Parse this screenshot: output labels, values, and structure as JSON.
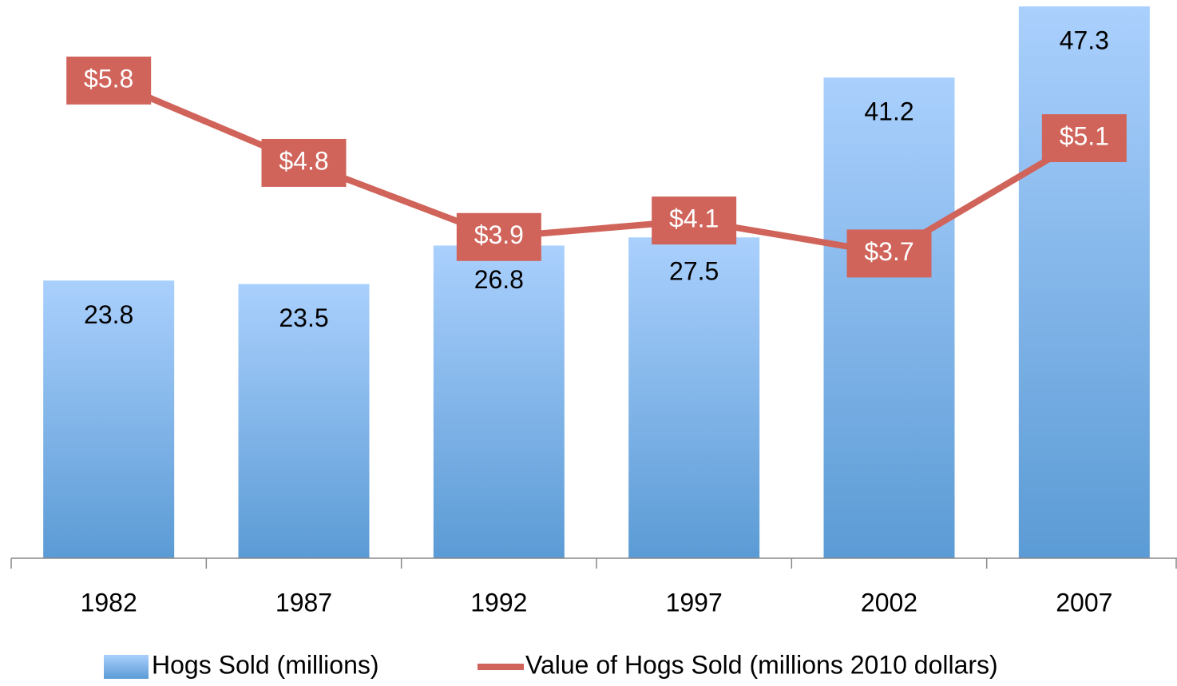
{
  "chart_data": {
    "type": "bar+line",
    "categories": [
      "1982",
      "1987",
      "1992",
      "1997",
      "2002",
      "2007"
    ],
    "series": [
      {
        "name": "Hogs Sold (millions)",
        "type": "bar",
        "color": "#5b9bd5",
        "values": [
          23.8,
          23.5,
          26.8,
          27.5,
          41.2,
          47.3
        ]
      },
      {
        "name": "Value of Hogs Sold (millions 2010 dollars)",
        "type": "line",
        "axis": "y2",
        "color": "#d0645a",
        "values": [
          5.8,
          4.8,
          3.9,
          4.1,
          3.7,
          5.1
        ],
        "value_labels": [
          "$5.8",
          "$4.8",
          "$3.9",
          "$4.1",
          "$3.7",
          "$5.1"
        ]
      }
    ],
    "ylim": [
      0,
      47.3
    ],
    "y2lim": [
      0,
      6.7
    ],
    "legend": "bottom"
  }
}
